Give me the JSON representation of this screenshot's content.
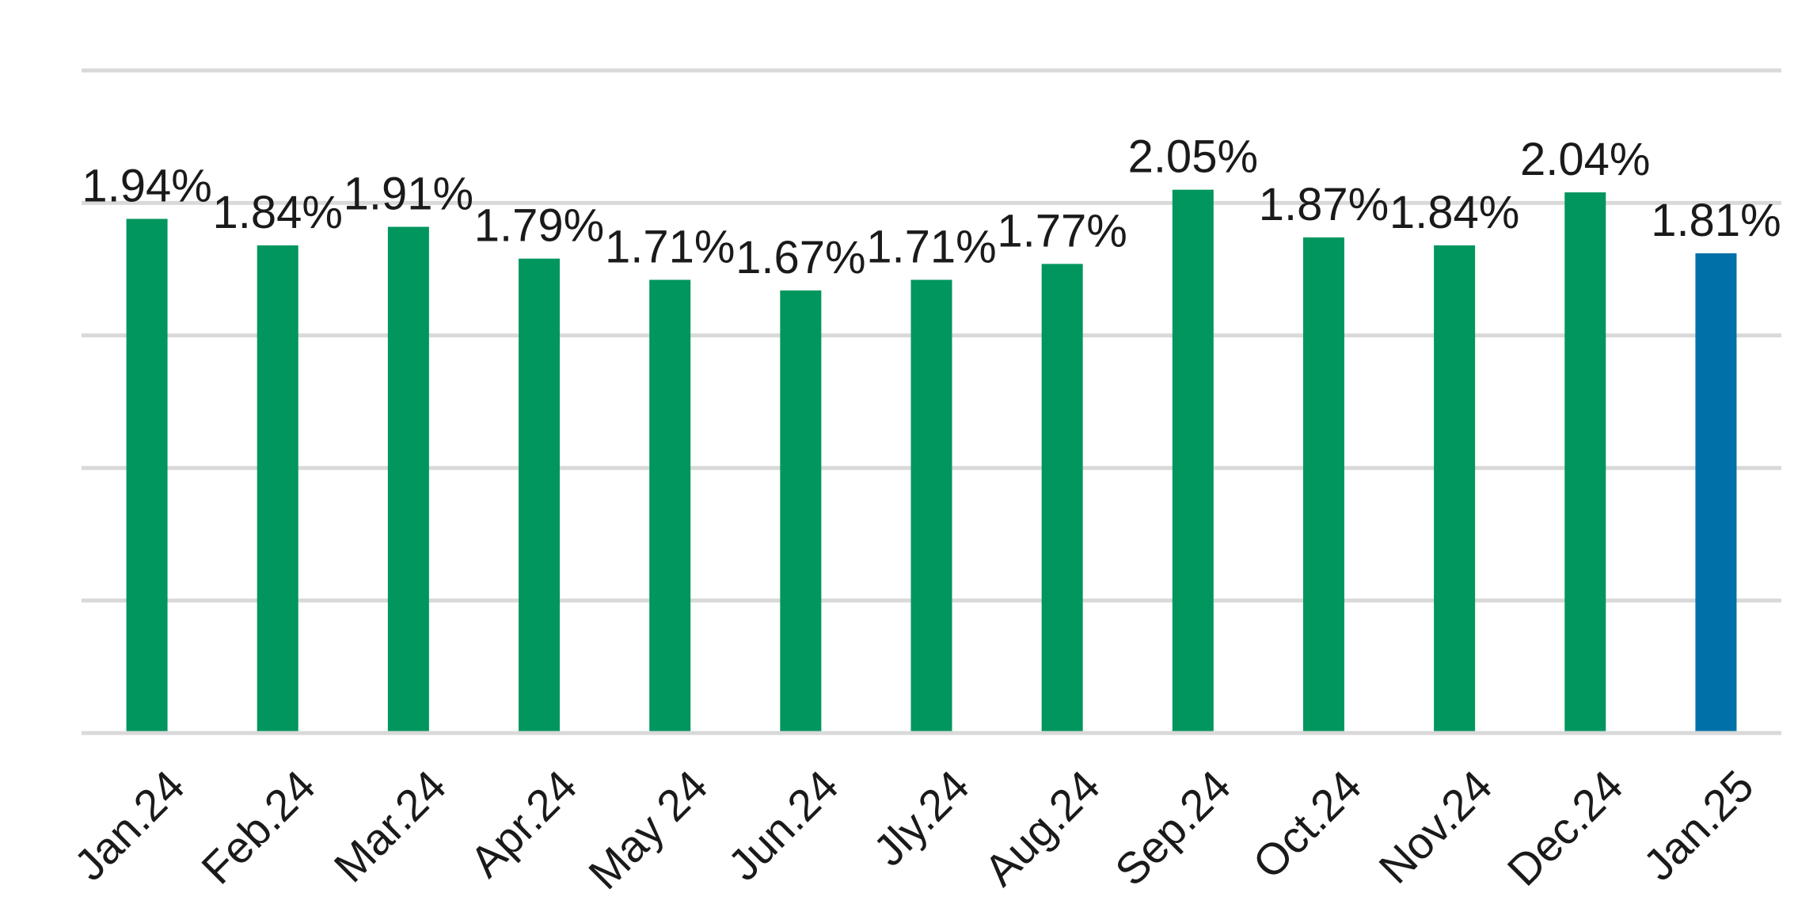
{
  "chart_data": {
    "type": "bar",
    "title": "",
    "xlabel": "",
    "ylabel": "",
    "categories": [
      "Jan.24",
      "Feb.24",
      "Mar.24",
      "Apr.24",
      "May 24",
      "Jun.24",
      "Jly.24",
      "Aug.24",
      "Sep.24",
      "Oct.24",
      "Nov.24",
      "Dec.24",
      "Jan.25"
    ],
    "series": [
      {
        "values": [
          1.94,
          1.84,
          1.91,
          1.79,
          1.71,
          1.67,
          1.71,
          1.77,
          2.05,
          1.87,
          1.84,
          2.04,
          1.81
        ]
      }
    ],
    "data_labels": [
      "1.94%",
      "1.84%",
      "1.91%",
      "1.79%",
      "1.71%",
      "1.67%",
      "1.71%",
      "1.77%",
      "2.05%",
      "1.87%",
      "1.84%",
      "2.04%",
      "1.81%"
    ],
    "ylim": [
      0,
      2.5
    ],
    "gridlines": [
      0,
      0.5,
      1.0,
      1.5,
      2.0,
      2.5
    ],
    "grid": true,
    "y_tick_labels_visible": false,
    "legend": "none",
    "colors": {
      "bar": "#00965e",
      "highlight_bar": "#0070a8",
      "gridline": "#d9d9d9",
      "text": "#1a1a1a"
    },
    "highlight_index": 12
  }
}
